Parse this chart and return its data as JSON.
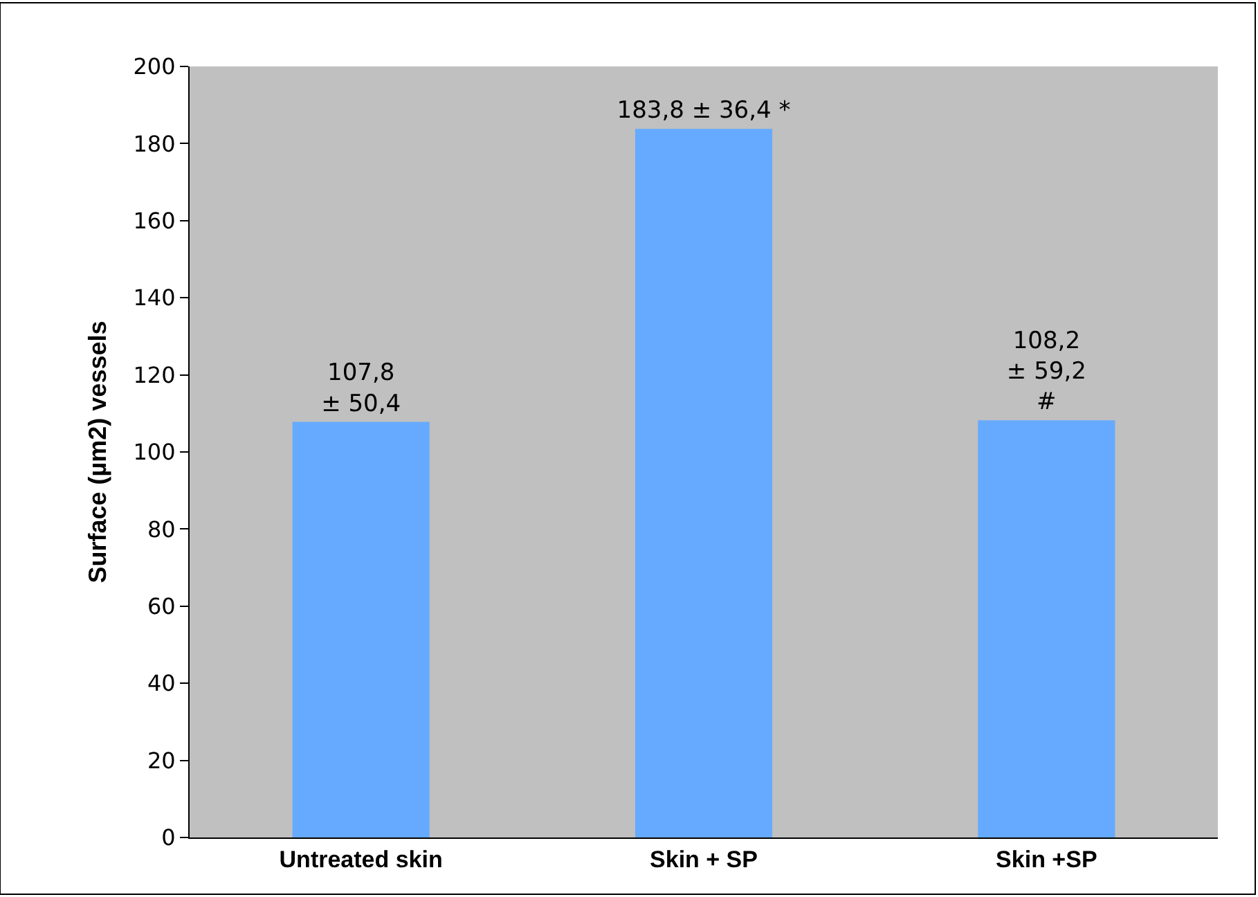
{
  "chart_data": {
    "type": "bar",
    "ylabel": "Surface (µm2) vessels",
    "categories": [
      "Untreated skin",
      "Skin + SP",
      "Skin +SP"
    ],
    "values": [
      107.8,
      183.8,
      108.2
    ],
    "color": "#66aaff",
    "value_labels": [
      "107,8\n± 50,4",
      "183,8 ± 36,4 *",
      "108,2\n± 59,2\n#"
    ],
    "ylim": [
      0,
      200
    ],
    "yticks": [
      0,
      20,
      40,
      60,
      80,
      100,
      120,
      140,
      160,
      180,
      200
    ],
    "grid": false
  }
}
